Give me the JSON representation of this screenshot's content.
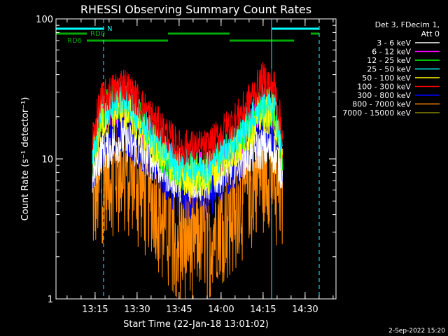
{
  "chart_data": {
    "type": "line",
    "title": "RHESSI Observing Summary Count Rates",
    "xlabel": "Start Time (22-Jan-18 13:01:02)",
    "ylabel": "Count Rate (s⁻¹ detector⁻¹)",
    "yscale": "log",
    "ylim": [
      1,
      100
    ],
    "y_tick_labels": [
      "1",
      "10",
      "100"
    ],
    "xlim_minutes": [
      0,
      100
    ],
    "x_ticks": [
      {
        "label": "13:15",
        "minute": 13.97
      },
      {
        "label": "13:30",
        "minute": 28.97
      },
      {
        "label": "13:45",
        "minute": 43.97
      },
      {
        "label": "14:00",
        "minute": 58.97
      },
      {
        "label": "14:15",
        "minute": 73.97
      },
      {
        "label": "14:30",
        "minute": 88.97
      }
    ],
    "data_range_minutes": [
      13,
      81
    ],
    "vertical_lines": [
      {
        "minute": 0,
        "style": "solid"
      },
      {
        "minute": 17,
        "style": "dashed"
      },
      {
        "minute": 77,
        "style": "solid"
      },
      {
        "minute": 94,
        "style": "dashed"
      }
    ],
    "flags": [
      {
        "label": "N",
        "color": "#00ffff",
        "level": 0,
        "segments": [
          [
            0,
            17
          ],
          [
            77,
            94
          ]
        ]
      },
      {
        "label": "RD0",
        "color": "#00aa00",
        "level": 1,
        "segments": [
          [
            0,
            11
          ],
          [
            40,
            62
          ],
          [
            91,
            94
          ]
        ]
      },
      {
        "label": "RD6",
        "color": "#00aa00",
        "level": 2,
        "segments": [
          [
            11,
            40
          ],
          [
            62,
            85
          ]
        ]
      }
    ],
    "legend": {
      "position": "top-right",
      "header": [
        "Det 3, FDecim 1,",
        "Att 0"
      ]
    },
    "series": [
      {
        "name": "3 - 6 keV",
        "color": "#ffffff",
        "profile": [
          [
            13,
            7.5
          ],
          [
            16,
            11
          ],
          [
            24,
            14
          ],
          [
            34,
            10
          ],
          [
            44,
            7
          ],
          [
            54,
            7
          ],
          [
            66,
            10
          ],
          [
            74,
            12
          ],
          [
            78,
            11
          ],
          [
            81,
            8
          ]
        ],
        "noise": 0.07
      },
      {
        "name": "6 - 12 keV",
        "color": "#ff00ff",
        "profile": [
          [
            13,
            10
          ],
          [
            16,
            20
          ],
          [
            24,
            26
          ],
          [
            34,
            14
          ],
          [
            44,
            8.5
          ],
          [
            54,
            8.5
          ],
          [
            66,
            14
          ],
          [
            74,
            22
          ],
          [
            78,
            20
          ],
          [
            81,
            10
          ]
        ],
        "noise": 0.06
      },
      {
        "name": "12 - 25 keV",
        "color": "#00ff00",
        "profile": [
          [
            13,
            10
          ],
          [
            16,
            21
          ],
          [
            24,
            27
          ],
          [
            34,
            14
          ],
          [
            44,
            8
          ],
          [
            54,
            8
          ],
          [
            66,
            14
          ],
          [
            74,
            24
          ],
          [
            78,
            22
          ],
          [
            81,
            10
          ]
        ],
        "noise": 0.07
      },
      {
        "name": "25 - 50 keV",
        "color": "#00ffff",
        "profile": [
          [
            13,
            10
          ],
          [
            16,
            22
          ],
          [
            24,
            29
          ],
          [
            34,
            15
          ],
          [
            44,
            9
          ],
          [
            54,
            9
          ],
          [
            66,
            15
          ],
          [
            74,
            26
          ],
          [
            78,
            24
          ],
          [
            81,
            11
          ]
        ],
        "noise": 0.06
      },
      {
        "name": "50 - 100 keV",
        "color": "#ffff00",
        "profile": [
          [
            13,
            10
          ],
          [
            16,
            19
          ],
          [
            24,
            24
          ],
          [
            34,
            13
          ],
          [
            44,
            7.5
          ],
          [
            54,
            7.5
          ],
          [
            66,
            13
          ],
          [
            74,
            22
          ],
          [
            78,
            20
          ],
          [
            81,
            10
          ]
        ],
        "noise": 0.07
      },
      {
        "name": "100 - 300 keV",
        "color": "#ff0000",
        "profile": [
          [
            13,
            14
          ],
          [
            16,
            26
          ],
          [
            24,
            35
          ],
          [
            34,
            20
          ],
          [
            44,
            12
          ],
          [
            54,
            12
          ],
          [
            66,
            21
          ],
          [
            74,
            37
          ],
          [
            78,
            33
          ],
          [
            81,
            15
          ]
        ],
        "noise": 0.06
      },
      {
        "name": "300 - 800 keV",
        "color": "#0000ff",
        "profile": [
          [
            13,
            8
          ],
          [
            16,
            13
          ],
          [
            24,
            17
          ],
          [
            34,
            10
          ],
          [
            44,
            5.5
          ],
          [
            54,
            5.5
          ],
          [
            66,
            10
          ],
          [
            74,
            17
          ],
          [
            78,
            16
          ],
          [
            81,
            8
          ]
        ],
        "noise": 0.08
      },
      {
        "name": "800 - 7000 keV",
        "color": "#ff8800",
        "profile": [
          [
            13,
            4.5
          ],
          [
            16,
            7
          ],
          [
            24,
            9
          ],
          [
            34,
            5.2
          ],
          [
            44,
            2.8
          ],
          [
            54,
            2.8
          ],
          [
            66,
            5.2
          ],
          [
            74,
            8.5
          ],
          [
            78,
            7.5
          ],
          [
            81,
            5
          ]
        ],
        "noise": 0.18
      },
      {
        "name": "7000 - 15000 keV",
        "color": "#888800",
        "profile": [],
        "noise": 0
      }
    ]
  },
  "footer": {
    "date_stamp": "2-Sep-2022 15:20"
  }
}
